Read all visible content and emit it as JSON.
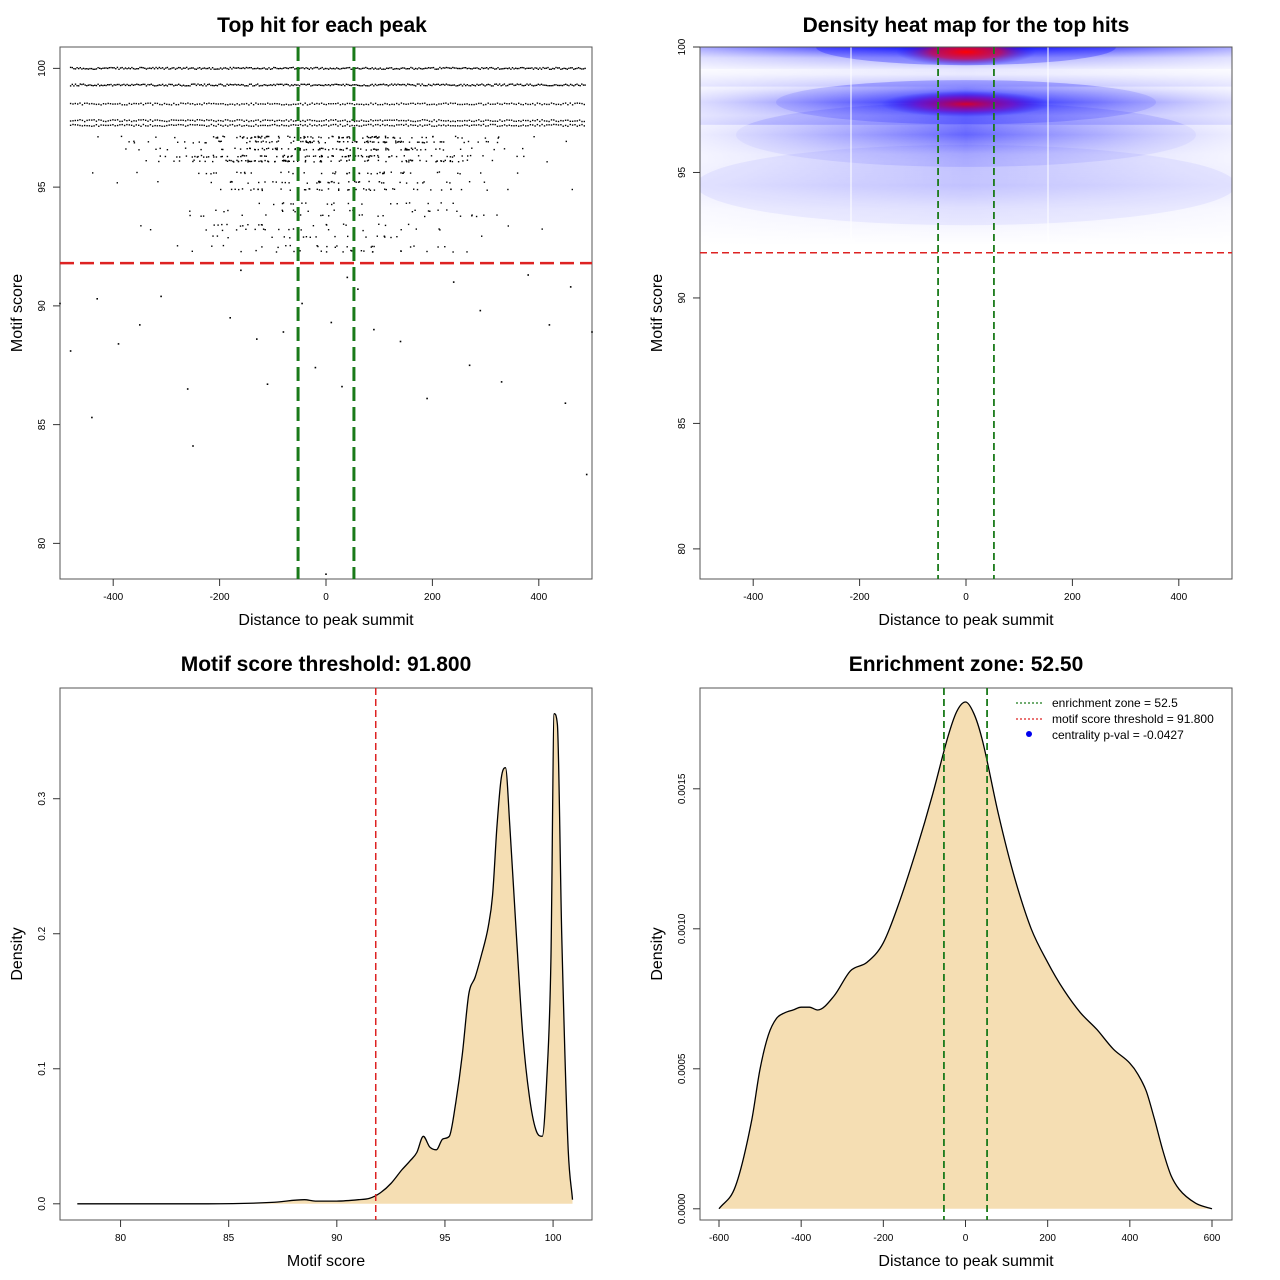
{
  "colors": {
    "threshold": "#dd2222",
    "zone": "#1a7a1a",
    "fill": "#f5deb3",
    "heat_low": "#ffffff",
    "heat_mid": "#0000ff",
    "heat_high": "#ff0000",
    "pval": "#0000ee"
  },
  "chart_data": [
    {
      "type": "scatter",
      "title": "Top hit for each peak",
      "xlabel": "Distance to peak summit",
      "ylabel": "Motif score",
      "xlim": [
        -500,
        500
      ],
      "ylim": [
        78.5,
        100.9
      ],
      "xticks": [
        "-400",
        "-200",
        "0",
        "200",
        "400"
      ],
      "yticks": [
        "80",
        "85",
        "90",
        "95",
        "100"
      ],
      "threshold": 91.8,
      "zone": [
        -52.5,
        52.5
      ],
      "score_levels": [
        100,
        99.3,
        98.5,
        97.8,
        97.6,
        97.1,
        96.9,
        96.6,
        96.3,
        96.1,
        95.6,
        95.2,
        94.9,
        94.3,
        94.0,
        93.8,
        93.4,
        93.2,
        92.9,
        92.5,
        92.3
      ],
      "low_points": [
        [
          -440,
          85.3
        ],
        [
          -430,
          90.3
        ],
        [
          -480,
          88.1
        ],
        [
          -350,
          89.2
        ],
        [
          -310,
          90.4
        ],
        [
          -260,
          86.5
        ],
        [
          -250,
          84.1
        ],
        [
          -180,
          89.5
        ],
        [
          -130,
          88.6
        ],
        [
          -110,
          86.7
        ],
        [
          -80,
          88.9
        ],
        [
          -45,
          90.1
        ],
        [
          -20,
          87.4
        ],
        [
          10,
          89.3
        ],
        [
          30,
          86.6
        ],
        [
          40,
          91.2
        ],
        [
          60,
          90.7
        ],
        [
          90,
          89.0
        ],
        [
          140,
          88.5
        ],
        [
          190,
          86.1
        ],
        [
          240,
          91.0
        ],
        [
          290,
          89.8
        ],
        [
          330,
          86.8
        ],
        [
          380,
          91.3
        ],
        [
          420,
          89.2
        ],
        [
          450,
          85.9
        ],
        [
          490,
          82.9
        ],
        [
          500,
          88.9
        ],
        [
          -500,
          90.1
        ],
        [
          -160,
          91.5
        ],
        [
          0,
          78.7
        ],
        [
          -390,
          88.4
        ],
        [
          270,
          87.5
        ],
        [
          460,
          90.8
        ]
      ]
    },
    {
      "type": "heatmap",
      "title": "Density heat map for the top hits",
      "xlabel": "Distance to peak summit",
      "ylabel": "Motif score",
      "xlim": [
        -500,
        500
      ],
      "ylim": [
        78.8,
        100.0
      ],
      "xticks": [
        "-400",
        "-200",
        "0",
        "200",
        "400"
      ],
      "yticks": [
        "80",
        "85",
        "90",
        "95",
        "100"
      ],
      "threshold": 91.8,
      "zone": [
        -52.5,
        52.5
      ],
      "bands": [
        {
          "score": 100.0,
          "sigma": 0.45,
          "intensity": 1.0,
          "center_boost": 0.8
        },
        {
          "score": 97.8,
          "sigma": 0.55,
          "intensity": 0.95,
          "center_boost": 0.7
        },
        {
          "score": 96.5,
          "sigma": 0.8,
          "intensity": 0.55,
          "center_boost": 0.3
        },
        {
          "score": 94.5,
          "sigma": 1.0,
          "intensity": 0.2,
          "center_boost": 0.15
        }
      ]
    },
    {
      "type": "area",
      "title": "Motif score threshold: 91.800",
      "xlabel": "Motif score",
      "ylabel": "Density",
      "xlim": [
        77.2,
        101.8
      ],
      "ylim": [
        -0.012,
        0.382
      ],
      "xticks": [
        "80",
        "85",
        "90",
        "95",
        "100"
      ],
      "yticks": [
        "0.0",
        "0.1",
        "0.2",
        "0.3"
      ],
      "threshold": 91.8,
      "x": [
        78.0,
        84.0,
        87.0,
        88.5,
        89.0,
        90.0,
        91.0,
        91.5,
        92.0,
        92.5,
        93.0,
        93.4,
        93.7,
        94.0,
        94.3,
        94.6,
        94.9,
        95.2,
        95.5,
        95.8,
        96.1,
        96.4,
        96.7,
        97.0,
        97.2,
        97.4,
        97.6,
        97.8,
        98.0,
        98.3,
        98.6,
        98.9,
        99.2,
        99.5,
        99.7,
        99.9,
        100.05,
        100.2,
        100.4,
        100.7,
        100.9
      ],
      "y": [
        0.0,
        0.0,
        0.001,
        0.003,
        0.002,
        0.002,
        0.003,
        0.004,
        0.008,
        0.015,
        0.025,
        0.032,
        0.038,
        0.05,
        0.042,
        0.04,
        0.048,
        0.05,
        0.075,
        0.11,
        0.155,
        0.168,
        0.185,
        0.205,
        0.228,
        0.278,
        0.315,
        0.323,
        0.28,
        0.2,
        0.125,
        0.08,
        0.055,
        0.05,
        0.09,
        0.18,
        0.363,
        0.355,
        0.2,
        0.04,
        0.003
      ]
    },
    {
      "type": "area",
      "title": "Enrichment zone: 52.50",
      "xlabel": "Distance to peak summit",
      "ylabel": "Density",
      "xlim": [
        -600,
        600
      ],
      "ylim": [
        -4e-05,
        0.00186
      ],
      "xticks": [
        "-600",
        "-400",
        "-200",
        "0",
        "200",
        "400",
        "600"
      ],
      "yticks": [
        "0.0000",
        "0.0005",
        "0.0010",
        "0.0015"
      ],
      "zone": [
        -52.5,
        52.5
      ],
      "x": [
        -600,
        -560,
        -520,
        -500,
        -480,
        -460,
        -440,
        -420,
        -400,
        -380,
        -360,
        -320,
        -280,
        -240,
        -200,
        -160,
        -120,
        -80,
        -40,
        -20,
        0,
        20,
        40,
        80,
        120,
        160,
        200,
        240,
        280,
        320,
        360,
        400,
        420,
        440,
        460,
        480,
        500,
        520,
        560,
        600
      ],
      "y": [
        0.0,
        8e-05,
        0.00032,
        0.0005,
        0.00062,
        0.00068,
        0.0007,
        0.00071,
        0.00072,
        0.00072,
        0.00071,
        0.00076,
        0.00085,
        0.00088,
        0.00095,
        0.0011,
        0.00128,
        0.00148,
        0.0017,
        0.00178,
        0.00181,
        0.00177,
        0.00168,
        0.00141,
        0.00118,
        0.001,
        0.00088,
        0.00078,
        0.0007,
        0.00064,
        0.00057,
        0.00052,
        0.00048,
        0.00042,
        0.00032,
        0.00021,
        0.00012,
        7e-05,
        2e-05,
        0.0
      ]
    }
  ],
  "legend": {
    "zone": "enrichment zone = 52.5",
    "threshold": "motif score threshold = 91.800",
    "pval": "centrality p-val = -0.0427"
  }
}
